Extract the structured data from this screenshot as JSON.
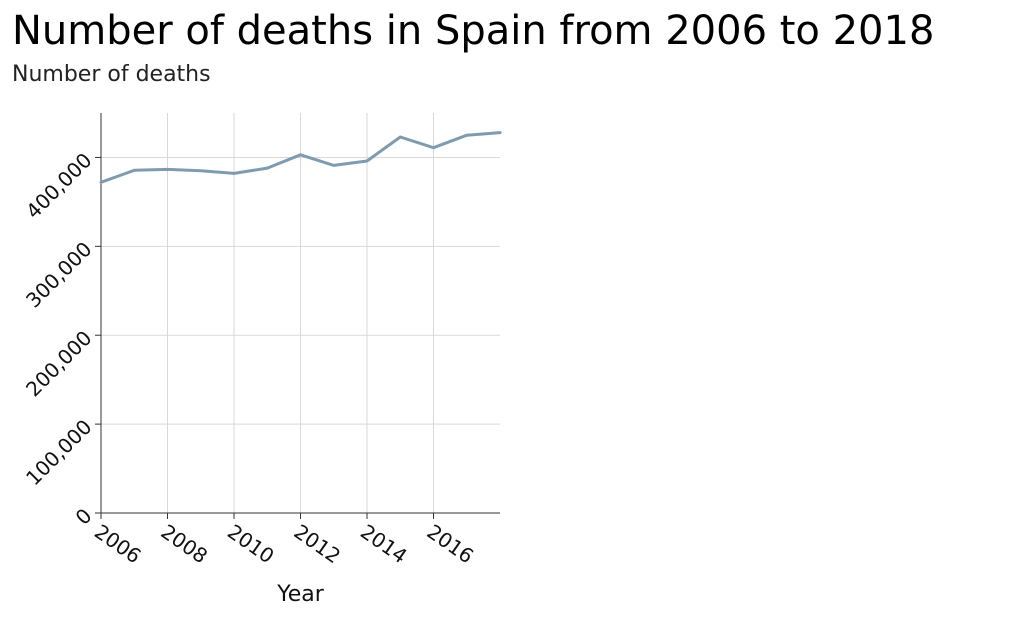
{
  "chart_data": {
    "type": "line",
    "title": "Number of deaths in Spain from 2006 to 2018",
    "ylabel": "Number of deaths",
    "xlabel": "Year",
    "xlim": [
      2006,
      2018
    ],
    "ylim": [
      0,
      450000
    ],
    "x_ticks": [
      2006,
      2008,
      2010,
      2012,
      2014,
      2016
    ],
    "x_tick_labels": [
      "2006",
      "2008",
      "2010",
      "2012",
      "2014",
      "2016"
    ],
    "y_ticks": [
      0,
      100000,
      200000,
      300000,
      400000
    ],
    "y_tick_labels": [
      "0",
      "100,000",
      "200,000",
      "300,000",
      "400,000"
    ],
    "grid": true,
    "series": [
      {
        "color": "#7f9bb0",
        "x": [
          2006,
          2007,
          2008,
          2009,
          2010,
          2011,
          2012,
          2013,
          2014,
          2015,
          2016,
          2017,
          2018
        ],
        "values": [
          372000,
          385500,
          386500,
          385000,
          382000,
          388000,
          403000,
          391000,
          396000,
          423000,
          411000,
          425000,
          428000
        ]
      }
    ]
  }
}
